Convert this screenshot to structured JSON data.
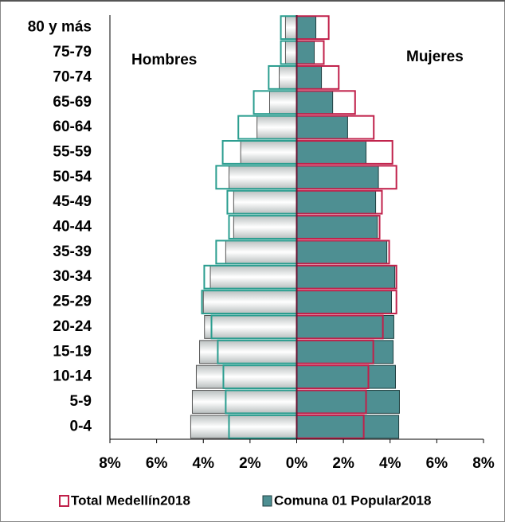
{
  "chart_data": {
    "type": "pyramid",
    "categories": [
      "80 y más",
      "75-79",
      "70-74",
      "65-69",
      "60-64",
      "55-59",
      "50-54",
      "45-49",
      "40-44",
      "35-39",
      "30-34",
      "25-29",
      "20-24",
      "15-19",
      "10-14",
      "5-9",
      "0-4"
    ],
    "men_label": "Hombres",
    "women_label": "Mujeres",
    "series": [
      {
        "name": "Comuna 01 Popular2018",
        "style": "filled",
        "color_men": "#b9bfbf",
        "color_women": "#4e8f92",
        "men": [
          -0.48,
          -0.48,
          -0.75,
          -1.16,
          -1.7,
          -2.4,
          -2.9,
          -2.7,
          -2.7,
          -3.04,
          -3.7,
          -4.0,
          -3.95,
          -4.16,
          -4.3,
          -4.47,
          -4.54
        ],
        "women": [
          0.82,
          0.75,
          1.06,
          1.54,
          2.18,
          2.97,
          3.5,
          3.38,
          3.45,
          3.86,
          4.2,
          4.06,
          4.16,
          4.13,
          4.23,
          4.4,
          4.37
        ]
      },
      {
        "name": "Total Medellín2018",
        "style": "outline",
        "color_men": "#2a9d8f",
        "color_women": "#c0204a",
        "men": [
          -0.68,
          -0.68,
          -1.2,
          -1.84,
          -2.5,
          -3.17,
          -3.45,
          -2.97,
          -2.9,
          -3.45,
          -3.96,
          -4.06,
          -3.65,
          -3.38,
          -3.14,
          -3.04,
          -2.9
        ],
        "women": [
          1.37,
          1.16,
          1.8,
          2.5,
          3.3,
          4.1,
          4.27,
          3.65,
          3.55,
          3.96,
          4.27,
          4.27,
          3.69,
          3.28,
          3.07,
          2.97,
          2.87
        ]
      }
    ],
    "xlim": [
      -8,
      8
    ],
    "xticks": [
      {
        "value": -8,
        "label": "8%"
      },
      {
        "value": -6,
        "label": "6%"
      },
      {
        "value": -4,
        "label": "4%"
      },
      {
        "value": -2,
        "label": "2%"
      },
      {
        "value": 0,
        "label": "0%"
      },
      {
        "value": 2,
        "label": "2%"
      },
      {
        "value": 4,
        "label": "4%"
      },
      {
        "value": 6,
        "label": "6%"
      },
      {
        "value": 8,
        "label": "8%"
      }
    ]
  }
}
